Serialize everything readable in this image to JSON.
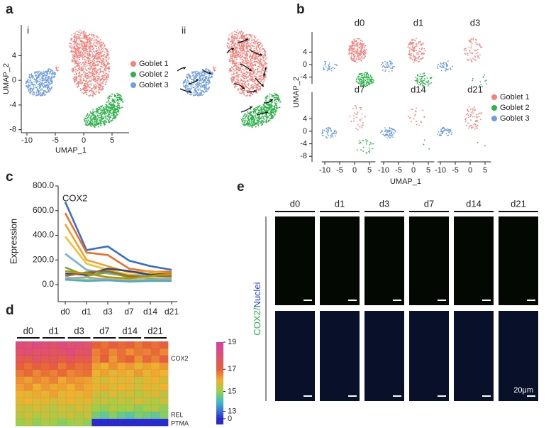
{
  "panels": {
    "a": {
      "label": "a",
      "sub_labels": [
        "i",
        "ii"
      ],
      "x_label": "UMAP_1",
      "y_label": "UMAP_2",
      "xlim": [
        -11,
        8
      ],
      "ylim": [
        -8.5,
        9
      ],
      "xticks": [
        -10,
        -5,
        0,
        5
      ],
      "yticks": [
        4,
        0,
        -4,
        -8
      ],
      "legend": [
        {
          "name": "Goblet 1",
          "color": "#f4817b"
        },
        {
          "name": "Goblet 2",
          "color": "#2db34a"
        },
        {
          "name": "Goblet 3",
          "color": "#6f9ee0"
        }
      ]
    },
    "b": {
      "label": "b",
      "x_label": "UMAP_1",
      "y_label": "UMAP_2",
      "timepoints": [
        [
          "d0",
          "d1",
          "d3"
        ],
        [
          "d7",
          "d14",
          "d21"
        ]
      ],
      "xticks": [
        -10,
        -5,
        0,
        5
      ],
      "row_yticks": [
        [
          4,
          0,
          -4
        ],
        [
          4,
          0,
          -4,
          -8
        ]
      ],
      "legend": [
        {
          "name": "Goblet 1",
          "color": "#f4817b"
        },
        {
          "name": "Goblet 2",
          "color": "#2db34a"
        },
        {
          "name": "Goblet 3",
          "color": "#6f9ee0"
        }
      ]
    },
    "e": {
      "label": "e",
      "columns": [
        "d0",
        "d1",
        "d3",
        "d7",
        "d14",
        "d21"
      ],
      "stain_label": "COX2/",
      "counterstain_label": "Nuclei",
      "scale_label": "20μm"
    }
  },
  "chart_data": [
    {
      "type": "line",
      "panel_label": "c",
      "y_label": "Expression",
      "annotation": "COX2",
      "categories": [
        "d0",
        "d1",
        "d3",
        "d7",
        "d14",
        "d21"
      ],
      "ylim": [
        0,
        800
      ],
      "yticks": [
        {
          "value": 0,
          "label": "0.0"
        },
        {
          "value": 200,
          "label": "200.0"
        },
        {
          "value": 400,
          "label": "400.0"
        },
        {
          "value": 600,
          "label": "600.0"
        },
        {
          "value": 800,
          "label": "800.0"
        }
      ],
      "series": [
        {
          "color": "#3a6fc4",
          "values": [
            670,
            280,
            310,
            195,
            150,
            120
          ]
        },
        {
          "color": "#e8702a",
          "values": [
            580,
            260,
            240,
            130,
            105,
            105
          ]
        },
        {
          "color": "#f0a030",
          "values": [
            490,
            200,
            150,
            100,
            110,
            90
          ]
        },
        {
          "color": "#f2c12e",
          "values": [
            390,
            170,
            120,
            80,
            90,
            80
          ]
        },
        {
          "color": "#7aaee0",
          "values": [
            250,
            120,
            90,
            70,
            80,
            60
          ]
        },
        {
          "color": "#6aa84f",
          "values": [
            140,
            70,
            100,
            60,
            50,
            55
          ]
        },
        {
          "color": "#2e4a7a",
          "values": [
            90,
            80,
            130,
            110,
            80,
            90
          ]
        },
        {
          "color": "#9c6a2e",
          "values": [
            70,
            100,
            110,
            70,
            60,
            70
          ]
        },
        {
          "color": "#a8d08d",
          "values": [
            60,
            40,
            50,
            40,
            60,
            50
          ]
        },
        {
          "color": "#bf9000",
          "values": [
            110,
            90,
            60,
            50,
            70,
            90
          ]
        },
        {
          "color": "#a5a5a5",
          "values": [
            50,
            60,
            40,
            30,
            40,
            45
          ]
        },
        {
          "color": "#4bacc6",
          "values": [
            40,
            30,
            35,
            25,
            30,
            30
          ]
        }
      ]
    },
    {
      "type": "heatmap",
      "panel_label": "d",
      "column_groups": [
        "d0",
        "d1",
        "d3",
        "d7",
        "d14",
        "d21"
      ],
      "row_labels": [
        null,
        null,
        "COX2",
        null,
        null,
        null,
        null,
        null,
        null,
        null,
        "REL",
        "PTMA"
      ],
      "colorbar_ticks": [
        19,
        17,
        15,
        13,
        0
      ],
      "colorscale": [
        [
          0,
          "#2a2ad0"
        ],
        [
          13,
          "#3a6fd8"
        ],
        [
          14,
          "#3cc0c8"
        ],
        [
          15,
          "#9ad04a"
        ],
        [
          16,
          "#f0b030"
        ],
        [
          17,
          "#e8603a"
        ],
        [
          19,
          "#d63fa8"
        ]
      ],
      "values": [
        [
          18.2,
          18.0,
          18.3,
          18.1,
          17.9,
          18.2,
          18.0,
          18.1,
          17.8,
          17.0,
          16.8,
          17.2,
          16.9,
          17.1,
          16.7,
          17.0,
          16.8,
          17.1
        ],
        [
          17.9,
          18.1,
          17.8,
          18.0,
          17.7,
          17.9,
          18.2,
          17.8,
          17.9,
          16.6,
          16.9,
          16.5,
          16.8,
          16.4,
          16.7,
          16.6,
          16.9,
          16.5
        ],
        [
          17.5,
          17.3,
          17.8,
          17.4,
          17.6,
          17.2,
          17.7,
          17.3,
          17.5,
          16.5,
          17.1,
          16.3,
          16.8,
          17.0,
          16.4,
          16.9,
          16.6,
          17.2
        ],
        [
          17.0,
          16.8,
          17.1,
          16.9,
          17.2,
          16.7,
          17.0,
          16.8,
          16.9,
          16.2,
          16.0,
          16.4,
          16.1,
          16.3,
          15.9,
          16.2,
          16.0,
          16.3
        ],
        [
          16.7,
          16.9,
          16.5,
          16.8,
          16.6,
          16.9,
          16.5,
          16.7,
          16.8,
          16.0,
          16.2,
          15.8,
          16.1,
          15.9,
          16.3,
          15.9,
          16.1,
          16.0
        ],
        [
          16.4,
          16.2,
          16.5,
          16.3,
          16.6,
          16.1,
          16.4,
          16.3,
          16.2,
          15.8,
          15.6,
          16.0,
          15.7,
          15.9,
          15.5,
          15.8,
          16.0,
          15.6
        ],
        [
          16.2,
          16.4,
          16.0,
          16.3,
          16.1,
          16.2,
          16.0,
          16.3,
          16.1,
          15.9,
          16.1,
          15.7,
          16.0,
          15.8,
          15.6,
          15.9,
          15.7,
          16.0
        ],
        [
          16.0,
          15.8,
          16.1,
          15.9,
          16.2,
          15.8,
          16.0,
          15.9,
          16.1,
          15.6,
          15.4,
          15.8,
          15.5,
          15.7,
          15.3,
          15.6,
          15.8,
          15.4
        ],
        [
          15.8,
          16.0,
          15.7,
          15.9,
          15.6,
          15.8,
          16.0,
          15.7,
          15.9,
          15.4,
          15.6,
          15.2,
          15.5,
          15.3,
          15.7,
          15.4,
          15.2,
          15.6
        ],
        [
          15.6,
          15.4,
          15.7,
          15.5,
          15.3,
          15.6,
          15.4,
          15.7,
          15.5,
          15.1,
          14.9,
          15.3,
          15.0,
          15.2,
          14.8,
          15.1,
          15.3,
          14.9
        ],
        [
          15.4,
          15.6,
          15.2,
          15.5,
          15.3,
          15.4,
          15.6,
          15.3,
          15.5,
          14.6,
          14.4,
          14.8,
          14.5,
          14.3,
          14.7,
          14.6,
          14.4,
          14.8
        ],
        [
          15.0,
          15.3,
          14.9,
          15.2,
          15.1,
          14.8,
          15.0,
          15.2,
          14.9,
          0,
          0,
          0,
          0,
          0,
          0,
          0,
          0,
          0
        ]
      ]
    }
  ]
}
